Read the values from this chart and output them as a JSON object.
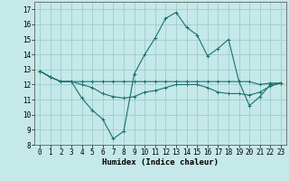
{
  "xlabel": "Humidex (Indice chaleur)",
  "xlim": [
    -0.5,
    23.5
  ],
  "ylim": [
    8,
    17.5
  ],
  "yticks": [
    8,
    9,
    10,
    11,
    12,
    13,
    14,
    15,
    16,
    17
  ],
  "xticks": [
    0,
    1,
    2,
    3,
    4,
    5,
    6,
    7,
    8,
    9,
    10,
    11,
    12,
    13,
    14,
    15,
    16,
    17,
    18,
    19,
    20,
    21,
    22,
    23
  ],
  "background_color": "#c5e8e8",
  "grid_color": "#a0cccc",
  "line_color": "#1a7070",
  "line1_y": [
    12.9,
    12.5,
    12.2,
    12.2,
    12.2,
    12.2,
    12.2,
    12.2,
    12.2,
    12.2,
    12.2,
    12.2,
    12.2,
    12.2,
    12.2,
    12.2,
    12.2,
    12.2,
    12.2,
    12.2,
    12.2,
    12.0,
    12.1,
    12.1
  ],
  "line2_y": [
    12.9,
    12.5,
    12.2,
    12.2,
    11.1,
    10.3,
    9.7,
    8.4,
    8.9,
    12.7,
    14.0,
    15.1,
    16.4,
    16.8,
    15.8,
    15.3,
    13.9,
    14.4,
    15.0,
    12.2,
    10.6,
    11.2,
    12.0,
    12.1
  ],
  "line3_y": [
    12.9,
    12.5,
    12.2,
    12.2,
    12.0,
    11.8,
    11.4,
    11.2,
    11.1,
    11.2,
    11.5,
    11.6,
    11.8,
    12.0,
    12.0,
    12.0,
    11.8,
    11.5,
    11.4,
    11.4,
    11.3,
    11.5,
    11.9,
    12.1
  ],
  "tick_fontsize": 5.5,
  "xlabel_fontsize": 6.5,
  "linewidth": 0.8,
  "marker_size": 2.5
}
